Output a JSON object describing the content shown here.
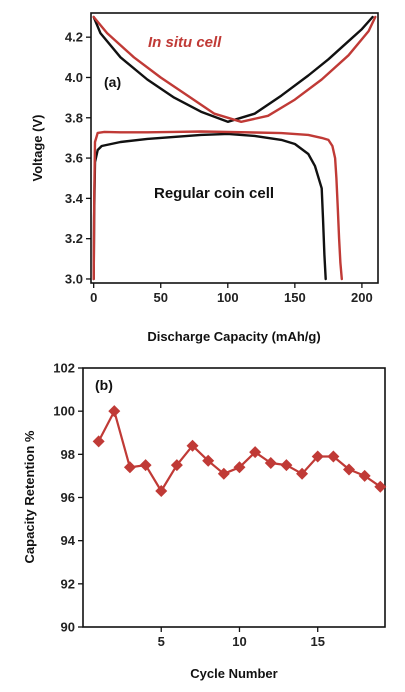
{
  "chart_data": [
    {
      "panel": "(a)",
      "type": "line",
      "xlabel": "Discharge Capacity (mAh/g)",
      "ylabel": "Voltage (V)",
      "xlim": [
        -2,
        212
      ],
      "ylim": [
        2.98,
        4.32
      ],
      "xticks": [
        0,
        50,
        100,
        150,
        200
      ],
      "yticks": [
        3.0,
        3.2,
        3.4,
        3.6,
        3.8,
        4.0,
        4.2
      ],
      "grid": false,
      "series": [
        {
          "name": "Regular coin cell",
          "color": "#111111",
          "curves": [
            {
              "x": [
                0,
                5,
                20,
                40,
                60,
                80,
                100,
                120,
                140,
                160,
                175,
                190,
                200,
                208
              ],
              "y": [
                4.3,
                4.22,
                4.1,
                3.99,
                3.9,
                3.83,
                3.78,
                3.82,
                3.91,
                4.01,
                4.09,
                4.18,
                4.24,
                4.3
              ]
            },
            {
              "x": [
                0,
                0.3,
                1,
                3,
                6,
                20,
                40,
                60,
                80,
                100,
                120,
                140,
                150,
                160,
                165,
                170,
                171,
                172,
                173
              ],
              "y": [
                3.0,
                3.3,
                3.58,
                3.64,
                3.66,
                3.68,
                3.695,
                3.705,
                3.715,
                3.72,
                3.71,
                3.69,
                3.67,
                3.62,
                3.56,
                3.45,
                3.3,
                3.12,
                3.0
              ]
            }
          ]
        },
        {
          "name": "In situ cell",
          "color": "#c03a36",
          "curves": [
            {
              "x": [
                0,
                10,
                30,
                50,
                70,
                90,
                110,
                130,
                150,
                170,
                190,
                205,
                210
              ],
              "y": [
                4.3,
                4.22,
                4.1,
                4.0,
                3.91,
                3.82,
                3.78,
                3.81,
                3.89,
                3.99,
                4.11,
                4.23,
                4.3
              ]
            },
            {
              "x": [
                0,
                0.4,
                1,
                3,
                8,
                20,
                40,
                60,
                80,
                100,
                120,
                140,
                160,
                170,
                175,
                178,
                180,
                181,
                182,
                183,
                184,
                185
              ],
              "y": [
                3.0,
                3.4,
                3.68,
                3.725,
                3.73,
                3.728,
                3.728,
                3.73,
                3.732,
                3.73,
                3.727,
                3.724,
                3.715,
                3.7,
                3.69,
                3.66,
                3.6,
                3.5,
                3.35,
                3.2,
                3.08,
                3.0
              ]
            }
          ]
        }
      ],
      "annotations": [
        {
          "text": "In situ cell",
          "style": "italic-series-label",
          "color": "#c03a36"
        },
        {
          "text": "Regular coin cell",
          "color": "#111111"
        }
      ]
    },
    {
      "panel": "(b)",
      "type": "line",
      "markers": "diamond",
      "xlabel": "Cycle Number",
      "ylabel": "Capacity Retention %",
      "xlim": [
        0,
        19.3
      ],
      "ylim": [
        90,
        102
      ],
      "xticks": [
        5,
        10,
        15
      ],
      "yticks": [
        90,
        92,
        94,
        96,
        98,
        100,
        102
      ],
      "grid": false,
      "series": [
        {
          "color": "#c03a36",
          "x": [
            1,
            2,
            3,
            4,
            5,
            6,
            7,
            8,
            9,
            10,
            11,
            12,
            13,
            14,
            15,
            16,
            17,
            18,
            19
          ],
          "y": [
            98.6,
            100.0,
            97.4,
            97.5,
            96.3,
            97.5,
            98.4,
            97.7,
            97.1,
            97.4,
            98.1,
            97.6,
            97.5,
            97.1,
            97.9,
            97.9,
            97.3,
            97.0,
            96.5
          ]
        }
      ]
    }
  ]
}
